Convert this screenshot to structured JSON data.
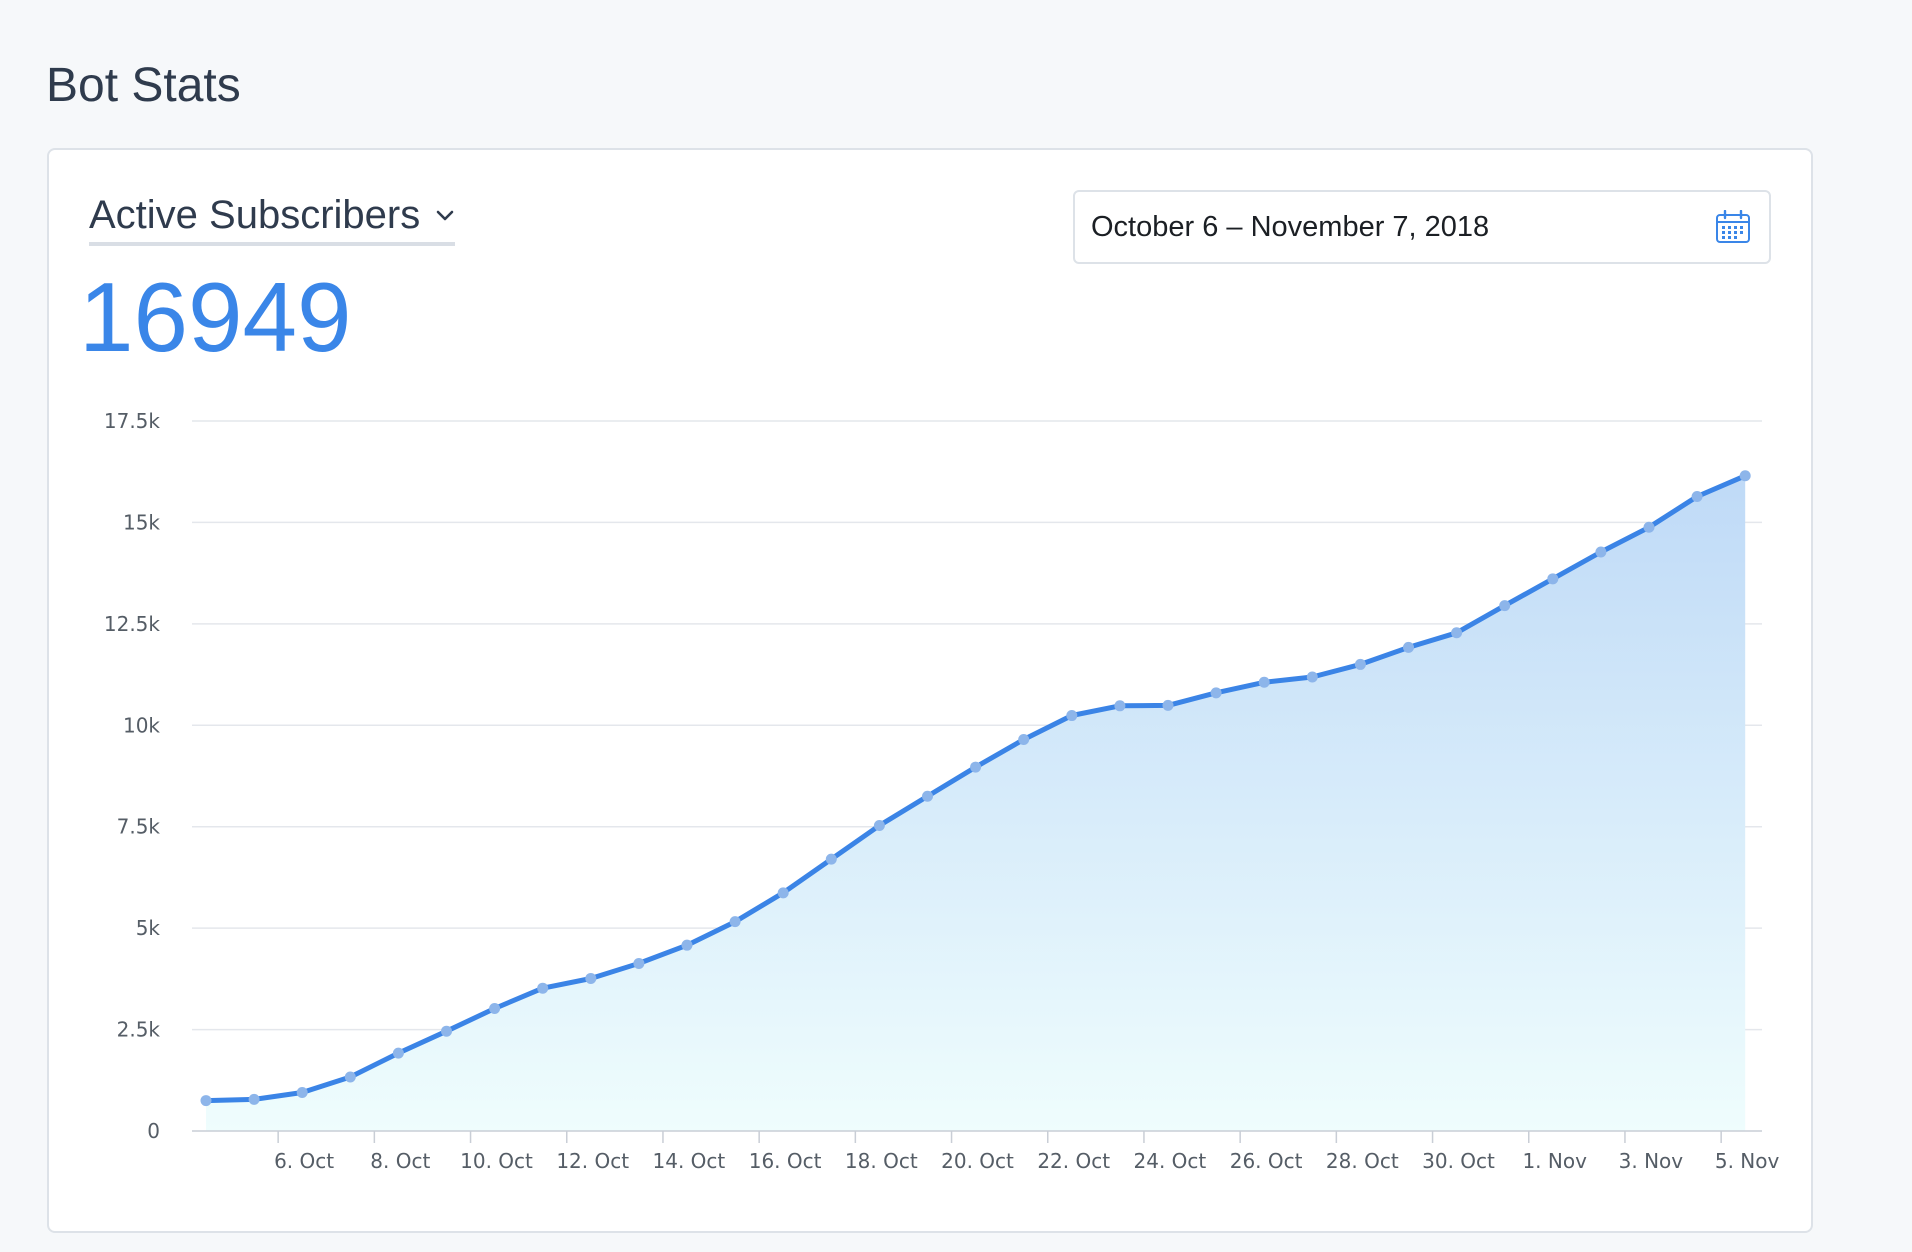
{
  "page": {
    "title": "Bot Stats"
  },
  "panel": {
    "metric_label": "Active Subscribers",
    "metric_value": "16949",
    "date_range": "October 6 – November 7, 2018"
  },
  "colors": {
    "accent": "#3a86e8",
    "line": "#3b84e6",
    "marker": "#8db5ea",
    "area_top": "#bfdaf7",
    "area_bottom": "#effdfd",
    "grid": "#e4e7ec"
  },
  "icons": {
    "dropdown": "chevron-down-icon",
    "calendar": "calendar-icon"
  },
  "chart_data": {
    "type": "area",
    "title": "",
    "xlabel": "",
    "ylabel": "",
    "ylim": [
      0,
      17500
    ],
    "y_ticks": [
      0,
      2500,
      5000,
      7500,
      10000,
      12500,
      15000,
      17500
    ],
    "y_tick_labels": [
      "0",
      "2.5k",
      "5k",
      "7.5k",
      "10k",
      "12.5k",
      "15k",
      "17.5k"
    ],
    "x_tick_labels": [
      "6. Oct",
      "8. Oct",
      "10. Oct",
      "12. Oct",
      "14. Oct",
      "16. Oct",
      "18. Oct",
      "20. Oct",
      "22. Oct",
      "24. Oct",
      "26. Oct",
      "28. Oct",
      "30. Oct",
      "1. Nov",
      "3. Nov",
      "5. Nov"
    ],
    "x": [
      "5. Oct",
      "6. Oct",
      "7. Oct",
      "8. Oct",
      "9. Oct",
      "10. Oct",
      "11. Oct",
      "12. Oct",
      "13. Oct",
      "14. Oct",
      "15. Oct",
      "16. Oct",
      "17. Oct",
      "18. Oct",
      "19. Oct",
      "20. Oct",
      "21. Oct",
      "22. Oct",
      "23. Oct",
      "24. Oct",
      "25. Oct",
      "26. Oct",
      "27. Oct",
      "28. Oct",
      "29. Oct",
      "30. Oct",
      "31. Oct",
      "1. Nov",
      "2. Nov",
      "3. Nov",
      "4. Nov",
      "5. Nov",
      "6. Nov"
    ],
    "series": [
      {
        "values": [
          750,
          780,
          950,
          1330,
          1920,
          2460,
          3020,
          3520,
          3760,
          4130,
          4580,
          5160,
          5870,
          6700,
          7530,
          8250,
          8970,
          9650,
          10240,
          10480,
          10490,
          10800,
          11060,
          11190,
          11500,
          11920,
          12280,
          12950,
          13610,
          14270,
          14880,
          15640,
          16150
        ]
      }
    ],
    "grid": true,
    "legend": "none"
  }
}
